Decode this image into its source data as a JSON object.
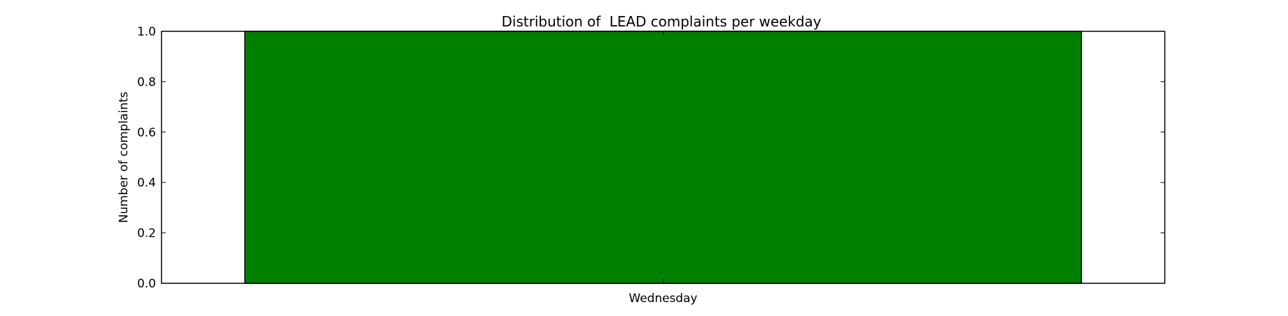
{
  "chart_data": {
    "type": "bar",
    "title": "Distribution of  LEAD complaints per weekday",
    "xlabel": "",
    "ylabel": "Number of complaints",
    "categories": [
      "Wednesday"
    ],
    "values": [
      1
    ],
    "ylim": [
      0,
      1.0
    ],
    "yticks": [
      "0.0",
      "0.2",
      "0.4",
      "0.6",
      "0.8",
      "1.0"
    ],
    "grid": false,
    "legend": "none",
    "bar_color": "#008000"
  }
}
